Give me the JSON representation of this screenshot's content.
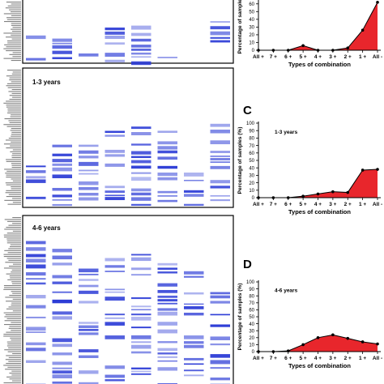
{
  "colors": {
    "heat": "#2b3bd6",
    "area_fill": "#e8262c",
    "line": "#000000"
  },
  "heatmaps": [
    {
      "label": ""
    },
    {
      "label": "1-3 years"
    },
    {
      "label": "4-6 years"
    }
  ],
  "panels": [
    "",
    "C",
    "D"
  ],
  "chart_data": [
    {
      "type": "area",
      "panel": "",
      "title": "",
      "xlabel": "Types of combination",
      "ylabel": "Percentage of samples",
      "categories": [
        "All +",
        "7 +",
        "6 +",
        "5 +",
        "4 +",
        "3 +",
        "2 +",
        "1 +",
        "All -"
      ],
      "values": [
        0,
        0,
        0,
        6,
        0,
        0,
        3,
        26,
        62
      ],
      "y_ticks": [
        "0",
        "10",
        "20",
        "30",
        "40",
        "50",
        "60"
      ],
      "ylim": [
        0,
        65
      ],
      "grid": false
    },
    {
      "type": "area",
      "panel": "C",
      "title": "1-3 years",
      "xlabel": "Types of combination",
      "ylabel": "Percentage of samples (%)",
      "categories": [
        "All +",
        "7 +",
        "6 +",
        "5 +",
        "4 +",
        "3 +",
        "2 +",
        "1 +",
        "All -"
      ],
      "values": [
        0,
        0,
        0,
        2,
        5,
        8,
        7,
        37,
        38
      ],
      "y_ticks": [
        "0",
        "10",
        "20",
        "30",
        "40",
        "50",
        "60",
        "70",
        "80",
        "90",
        "100"
      ],
      "ylim": [
        0,
        100
      ],
      "grid": false
    },
    {
      "type": "area",
      "panel": "D",
      "title": "4-6 years",
      "xlabel": "Types of combination",
      "ylabel": "Percentage of samples (%)",
      "categories": [
        "All +",
        "7 +",
        "6 +",
        "5 +",
        "4 +",
        "3 +",
        "2 +",
        "1 +",
        "All -"
      ],
      "values": [
        0,
        0,
        1,
        10,
        20,
        24,
        19,
        14,
        11
      ],
      "y_ticks": [
        "0",
        "10",
        "20",
        "30",
        "40",
        "50",
        "60",
        "70",
        "80",
        "90",
        "100"
      ],
      "ylim": [
        0,
        100
      ],
      "grid": false
    }
  ]
}
